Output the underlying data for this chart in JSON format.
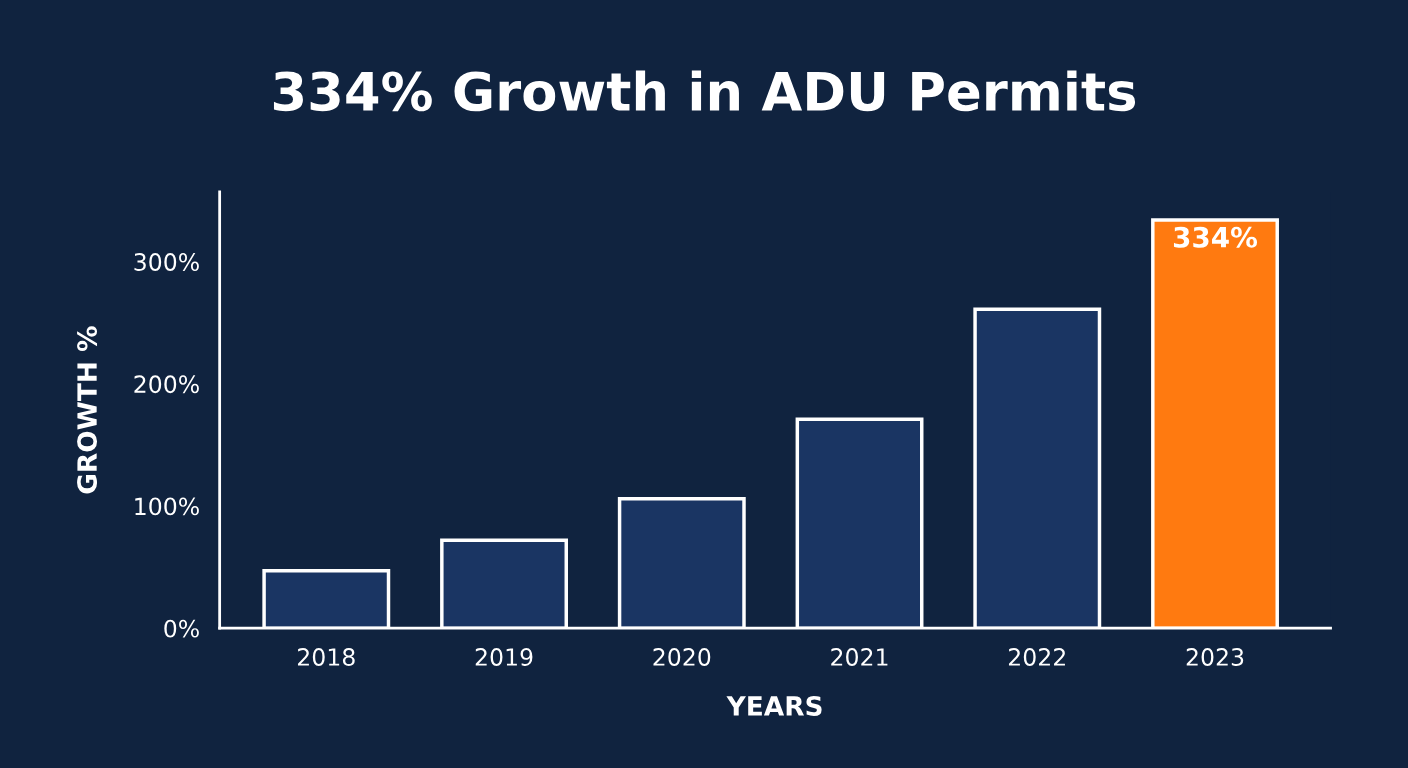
{
  "chart_data": {
    "type": "bar",
    "title": "334% Growth in ADU Permits",
    "xlabel": "YEARS",
    "ylabel": "GROWTH %",
    "categories": [
      "2018",
      "2019",
      "2020",
      "2021",
      "2022",
      "2023"
    ],
    "values": [
      47,
      72,
      106,
      171,
      261,
      334
    ],
    "colors": [
      "#1a3563",
      "#1a3563",
      "#1a3563",
      "#1a3563",
      "#1a3563",
      "#ff7a10"
    ],
    "value_labels": [
      null,
      null,
      null,
      null,
      null,
      "334%"
    ],
    "ylim": [
      0,
      357
    ],
    "yticks": [
      {
        "value": 0,
        "label": "0%"
      },
      {
        "value": 100,
        "label": "100%"
      },
      {
        "value": 200,
        "label": "200%"
      },
      {
        "value": 300,
        "label": "300%"
      }
    ],
    "grid": false
  }
}
